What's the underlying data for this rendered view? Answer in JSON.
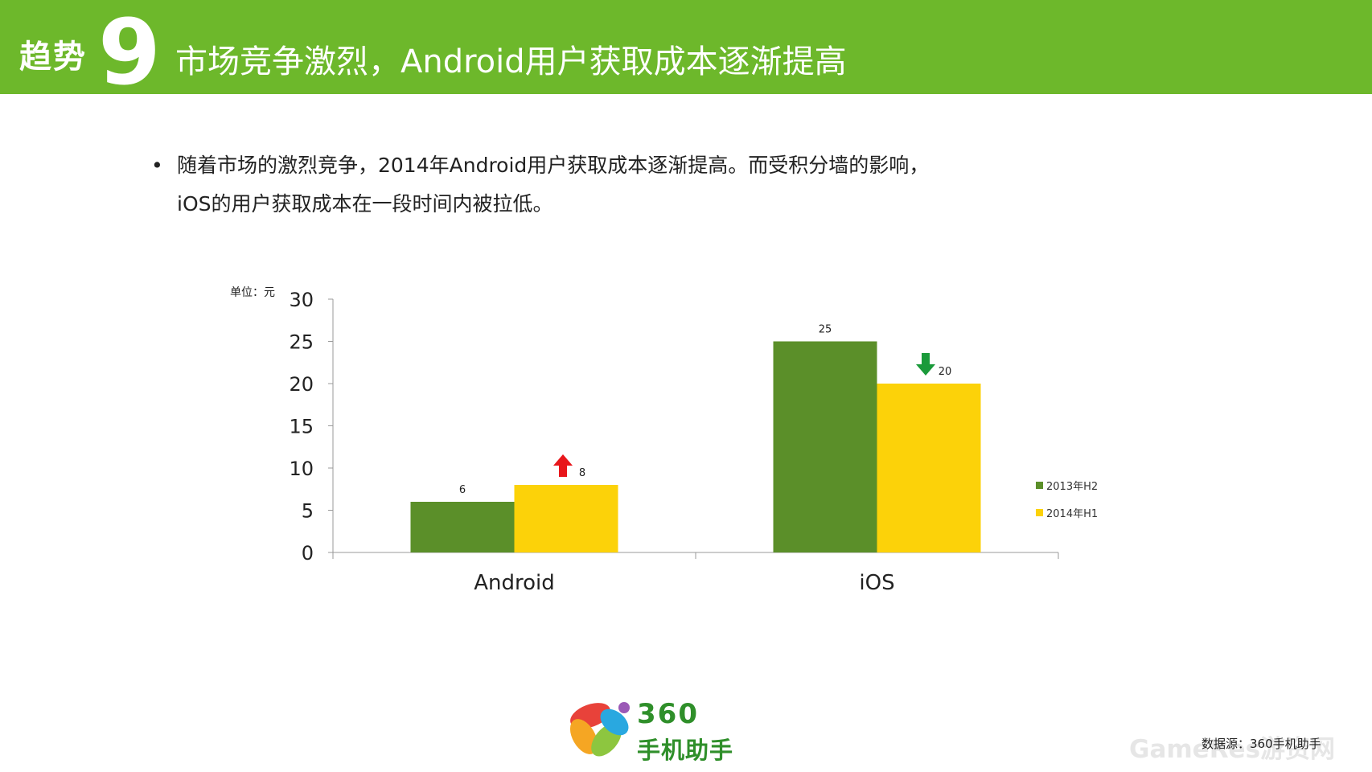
{
  "header": {
    "trend_word": "趋势",
    "trend_number": "9",
    "title": "市场竞争激烈，Android用户获取成本逐渐提高"
  },
  "bullet": {
    "dot": "•",
    "line1": "随着市场的激烈竞争，2014年Android用户获取成本逐渐提高。而受积分墙的影响，",
    "line2": "iOS的用户获取成本在一段时间内被拉低。"
  },
  "chart_data": {
    "type": "bar",
    "unit_label": "单位：元",
    "categories": [
      "Android",
      "iOS"
    ],
    "series": [
      {
        "name": "2013年H2",
        "values": [
          6,
          25
        ],
        "color": "#5b8f29"
      },
      {
        "name": "2014年H1",
        "values": [
          8,
          20
        ],
        "color": "#fcd209"
      }
    ],
    "ylim": [
      0,
      30
    ],
    "yticks": [
      0,
      5,
      10,
      15,
      20,
      25,
      30
    ],
    "grid": false,
    "legend_position": "right",
    "data_labels": true,
    "annotations": [
      {
        "category": "Android",
        "series": "2014年H1",
        "arrow": "up",
        "color": "#e8161b"
      },
      {
        "category": "iOS",
        "series": "2014年H1",
        "arrow": "down",
        "color": "#1a9a3a"
      }
    ]
  },
  "logo": {
    "brand": "360",
    "subtitle": "手机助手",
    "colors": [
      "#e8423a",
      "#f5a623",
      "#8dc63f",
      "#29a8e0",
      "#9b59b6"
    ]
  },
  "source": "数据源：360手机助手",
  "watermark": "GameRes游资网"
}
